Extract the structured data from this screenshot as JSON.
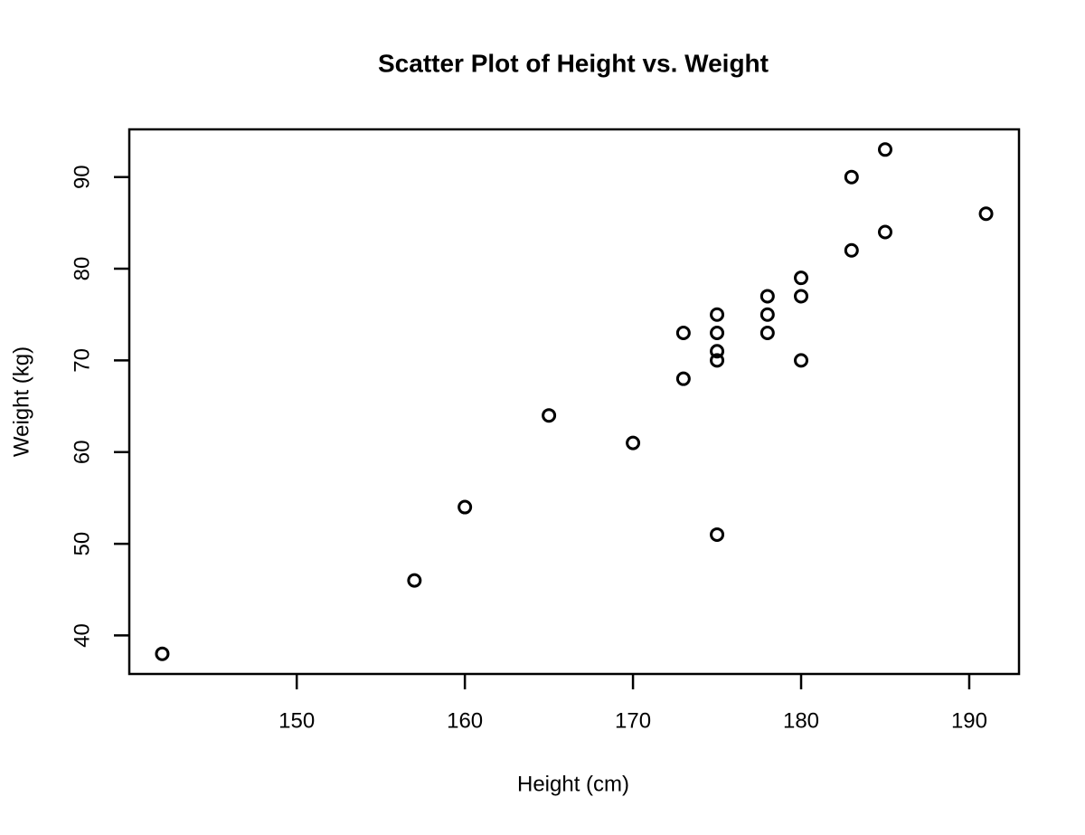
{
  "chart_data": {
    "type": "scatter",
    "title": "Scatter Plot of Height vs. Weight",
    "xlabel": "Height (cm)",
    "ylabel": "Weight (kg)",
    "x": [
      142,
      157,
      160,
      165,
      170,
      173,
      173,
      175,
      175,
      175,
      175,
      175,
      178,
      178,
      178,
      180,
      180,
      180,
      183,
      183,
      185,
      185,
      191
    ],
    "values": [
      38,
      46,
      54,
      64,
      61,
      68,
      73,
      51,
      70,
      71,
      73,
      75,
      73,
      75,
      77,
      70,
      77,
      79,
      82,
      90,
      84,
      93,
      86
    ],
    "color": "#000000",
    "xlim": [
      140.04,
      192.96
    ],
    "ylim": [
      35.8,
      95.2
    ],
    "xticks": [
      150,
      160,
      170,
      180,
      190
    ],
    "yticks": [
      40,
      50,
      60,
      70,
      80,
      90
    ]
  }
}
